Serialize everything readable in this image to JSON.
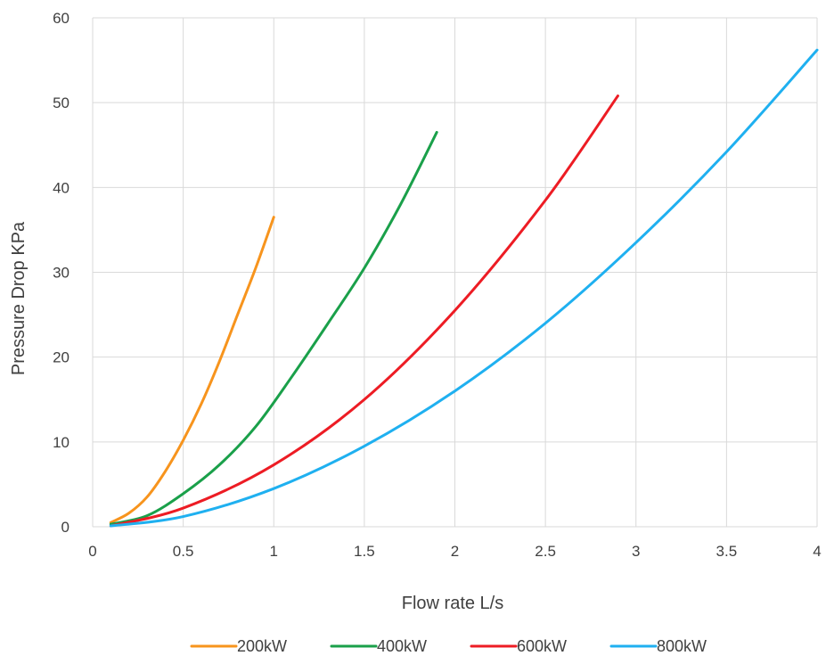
{
  "chart_data": {
    "type": "line",
    "title": "",
    "xlabel": "Flow rate L/s",
    "ylabel": "Pressure Drop KPa",
    "xlim": [
      0,
      4
    ],
    "ylim": [
      0,
      60
    ],
    "xticks": [
      0,
      0.5,
      1,
      1.5,
      2,
      2.5,
      3,
      3.5,
      4
    ],
    "yticks": [
      0,
      10,
      20,
      30,
      40,
      50,
      60
    ],
    "xtick_labels": [
      "0",
      "0.5",
      "1",
      "1.5",
      "2",
      "2.5",
      "3",
      "3.5",
      "4"
    ],
    "ytick_labels": [
      "0",
      "10",
      "20",
      "30",
      "40",
      "50",
      "60"
    ],
    "grid": true,
    "legend_position": "bottom",
    "series": [
      {
        "name": "200kW",
        "color": "#f7941d",
        "x": [
          0.1,
          0.2,
          0.3,
          0.4,
          0.5,
          0.6,
          0.7,
          0.8,
          0.9,
          1.0
        ],
        "y": [
          0.5,
          1.6,
          3.5,
          6.5,
          10.2,
          14.5,
          19.5,
          25.0,
          30.5,
          36.5
        ]
      },
      {
        "name": "400kW",
        "color": "#1aa04a",
        "x": [
          0.1,
          0.3,
          0.5,
          0.7,
          0.9,
          1.1,
          1.3,
          1.5,
          1.7,
          1.9
        ],
        "y": [
          0.3,
          1.3,
          3.9,
          7.3,
          11.8,
          17.7,
          24.0,
          30.5,
          38.0,
          46.5
        ]
      },
      {
        "name": "600kW",
        "color": "#ed1c24",
        "x": [
          0.1,
          0.5,
          1.0,
          1.5,
          2.0,
          2.5,
          2.9
        ],
        "y": [
          0.1,
          2.2,
          7.3,
          15.0,
          25.5,
          38.5,
          50.8
        ]
      },
      {
        "name": "800kW",
        "color": "#1fb0f0",
        "x": [
          0.1,
          0.5,
          1.0,
          1.5,
          2.0,
          2.5,
          3.0,
          3.5,
          4.0
        ],
        "y": [
          0.1,
          1.2,
          4.5,
          9.5,
          16.0,
          24.0,
          33.5,
          44.2,
          56.2
        ]
      }
    ]
  }
}
